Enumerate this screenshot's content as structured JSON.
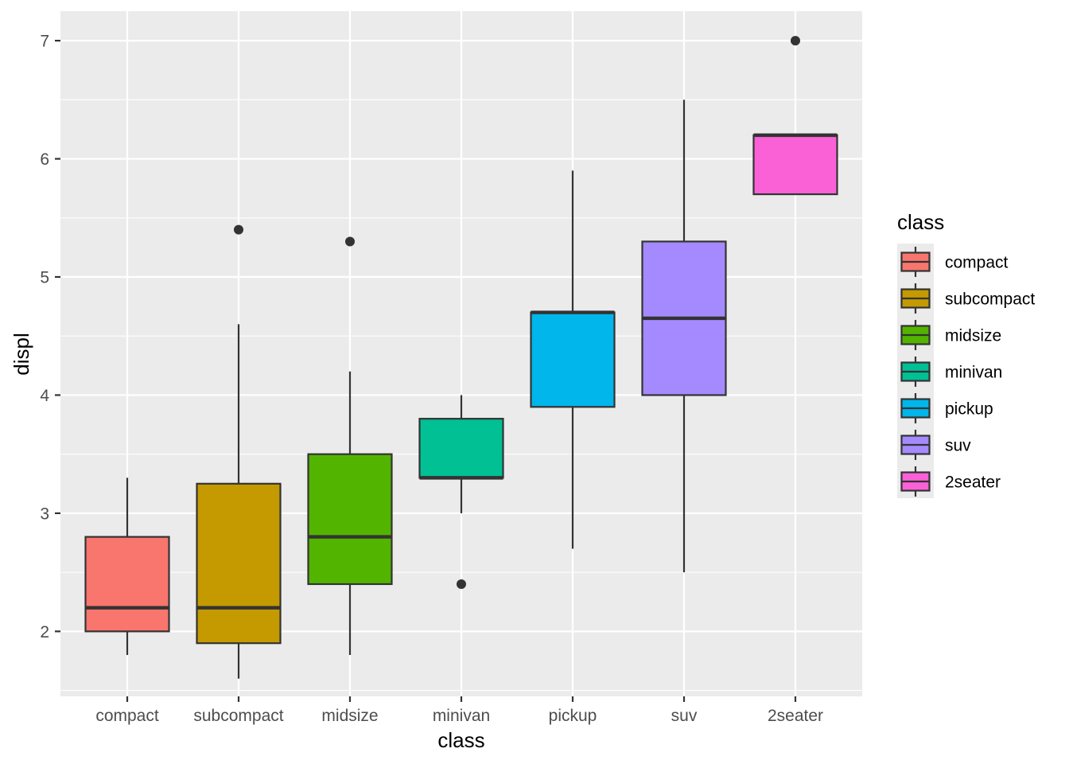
{
  "chart_data": {
    "type": "boxplot",
    "xlabel": "class",
    "ylabel": "displ",
    "ylim": [
      1.45,
      7.25
    ],
    "yticks": [
      2,
      3,
      4,
      5,
      6,
      7
    ],
    "ytick_labels": [
      "2",
      "3",
      "4",
      "5",
      "6",
      "7"
    ],
    "categories": [
      "compact",
      "subcompact",
      "midsize",
      "minivan",
      "pickup",
      "suv",
      "2seater"
    ],
    "boxes": [
      {
        "category": "compact",
        "lower_whisker": 1.8,
        "q1": 2.0,
        "median": 2.2,
        "q3": 2.8,
        "upper_whisker": 3.3,
        "outliers": [],
        "color": "#F8766D"
      },
      {
        "category": "subcompact",
        "lower_whisker": 1.6,
        "q1": 1.9,
        "median": 2.2,
        "q3": 3.25,
        "upper_whisker": 4.6,
        "outliers": [
          5.4
        ],
        "color": "#C49A00"
      },
      {
        "category": "midsize",
        "lower_whisker": 1.8,
        "q1": 2.4,
        "median": 2.8,
        "q3": 3.5,
        "upper_whisker": 4.2,
        "outliers": [
          5.3
        ],
        "color": "#53B400"
      },
      {
        "category": "minivan",
        "lower_whisker": 3.0,
        "q1": 3.3,
        "median": 3.3,
        "q3": 3.8,
        "upper_whisker": 4.0,
        "outliers": [
          2.4
        ],
        "color": "#00C094"
      },
      {
        "category": "pickup",
        "lower_whisker": 2.7,
        "q1": 3.9,
        "median": 4.7,
        "q3": 4.7,
        "upper_whisker": 5.9,
        "outliers": [],
        "color": "#00B6EB"
      },
      {
        "category": "suv",
        "lower_whisker": 2.5,
        "q1": 4.0,
        "median": 4.65,
        "q3": 5.3,
        "upper_whisker": 6.5,
        "outliers": [],
        "color": "#A58AFF"
      },
      {
        "category": "2seater",
        "lower_whisker": 5.7,
        "q1": 5.7,
        "median": 6.2,
        "q3": 6.2,
        "upper_whisker": 6.2,
        "outliers": [
          7.0
        ],
        "color": "#FB61D7"
      }
    ],
    "legend": {
      "title": "class",
      "position": "right",
      "items": [
        "compact",
        "subcompact",
        "midsize",
        "minivan",
        "pickup",
        "suv",
        "2seater"
      ]
    }
  },
  "colors": {
    "panel_background": "#EBEBEB",
    "grid_major": "#FFFFFF",
    "box_outline": "#333333",
    "outlier": "#333333"
  }
}
